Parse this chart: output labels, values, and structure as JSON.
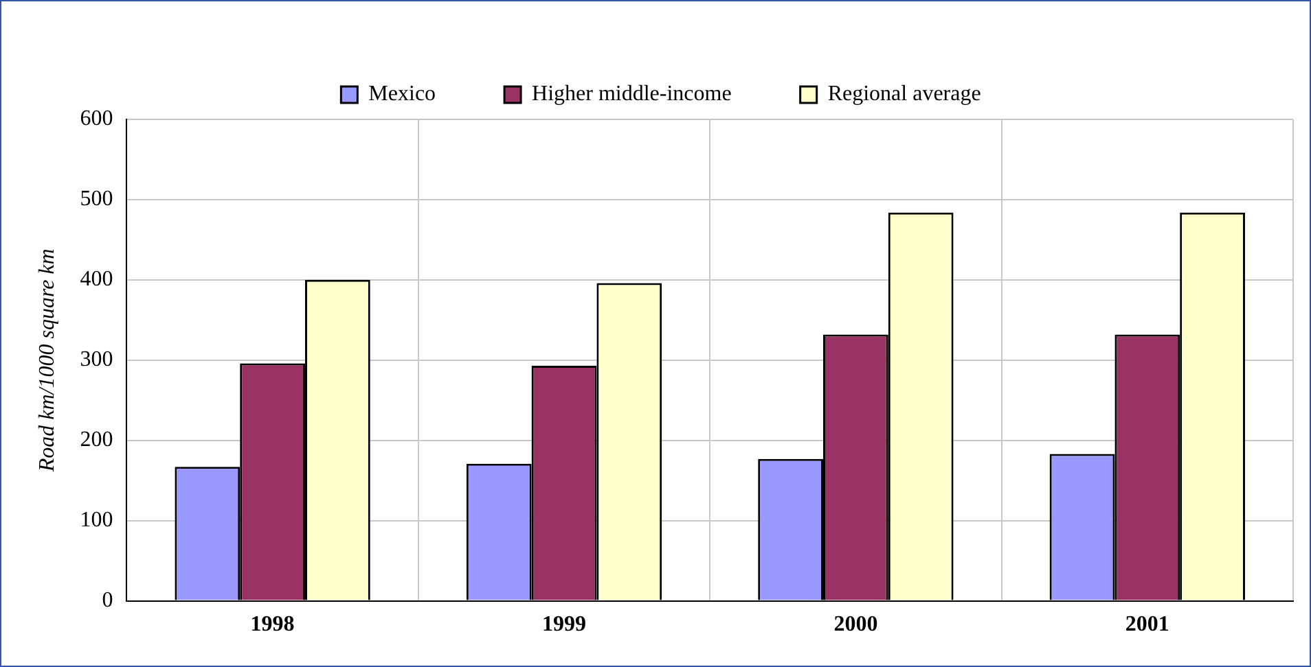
{
  "chart_data": {
    "type": "bar",
    "ylabel": "Road km/1000 square km",
    "categories": [
      "1998",
      "1999",
      "2000",
      "2001"
    ],
    "series": [
      {
        "name": "Mexico",
        "color": "#9999ff",
        "values": [
          167,
          171,
          177,
          183
        ]
      },
      {
        "name": "Higher middle-income",
        "color": "#993366",
        "values": [
          296,
          293,
          332,
          332
        ]
      },
      {
        "name": "Regional average",
        "color": "#ffffcc",
        "values": [
          400,
          396,
          484,
          484
        ]
      }
    ],
    "ylim": [
      0,
      600
    ],
    "yticks": [
      0,
      100,
      200,
      300,
      400,
      500,
      600
    ],
    "grid": true,
    "legend": "top"
  }
}
